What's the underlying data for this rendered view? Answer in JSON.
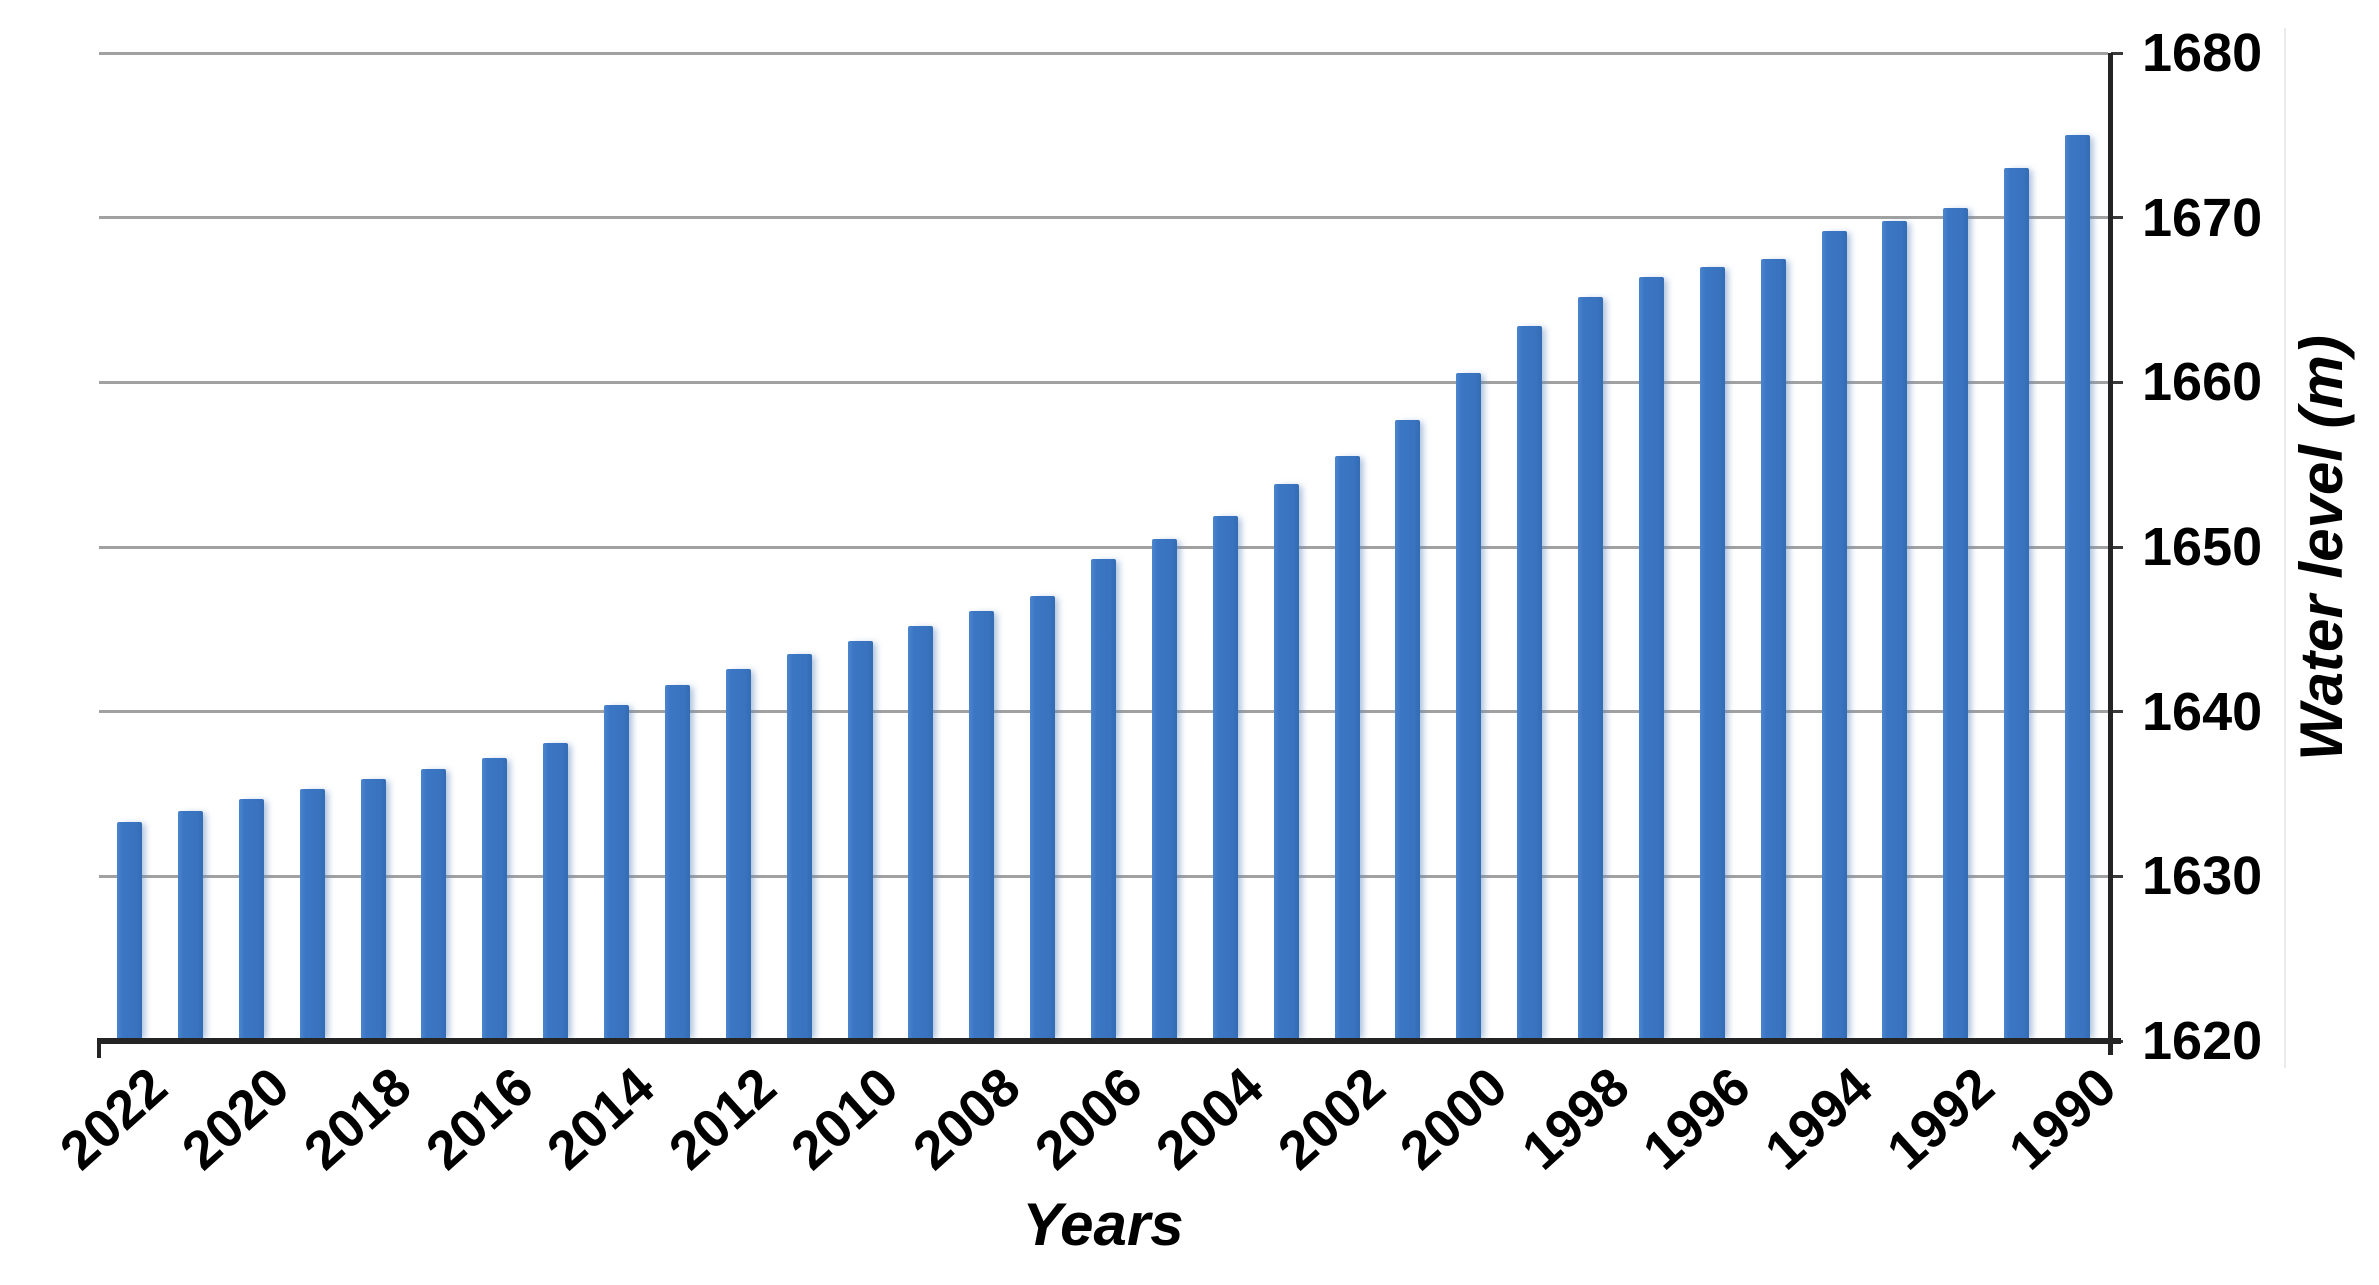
{
  "chart_data": {
    "type": "bar",
    "title": "",
    "xlabel": "Years",
    "ylabel": "Water level (m)",
    "categories": [
      "2022",
      "2021",
      "2020",
      "2019",
      "2018",
      "2017",
      "2016",
      "2015",
      "2014",
      "2013",
      "2012",
      "2011",
      "2010",
      "2009",
      "2008",
      "2007",
      "2006",
      "2005",
      "2004",
      "2003",
      "2002",
      "2001",
      "2000",
      "1999",
      "1998",
      "1997",
      "1996",
      "1995",
      "1994",
      "1993",
      "1992",
      "1991",
      "1990"
    ],
    "x_axis_note": "years run in reverse order, newest (2022) on the left, only even years labeled",
    "values": [
      1633.3,
      1634.0,
      1634.7,
      1635.3,
      1635.9,
      1636.5,
      1637.2,
      1638.1,
      1640.4,
      1641.6,
      1642.6,
      1643.5,
      1644.3,
      1645.2,
      1646.1,
      1647.0,
      1649.3,
      1650.5,
      1651.9,
      1653.8,
      1655.5,
      1657.7,
      1660.6,
      1663.4,
      1665.2,
      1666.4,
      1667.0,
      1667.5,
      1669.2,
      1669.8,
      1670.6,
      1673.0,
      1675.0
    ],
    "ylim": [
      1620,
      1680
    ],
    "yticks": [
      1620,
      1630,
      1640,
      1650,
      1660,
      1670,
      1680
    ],
    "grid": "horizontal gridlines on",
    "y_axis_side": "right",
    "legend": "none",
    "colors": {
      "bar_fill": "#3b76c4",
      "bar_edge_shadow": "#6088be",
      "gridline": "#a1a1a1",
      "axis_line": "#242424",
      "text": "#000000",
      "background": "#ffffff"
    }
  }
}
